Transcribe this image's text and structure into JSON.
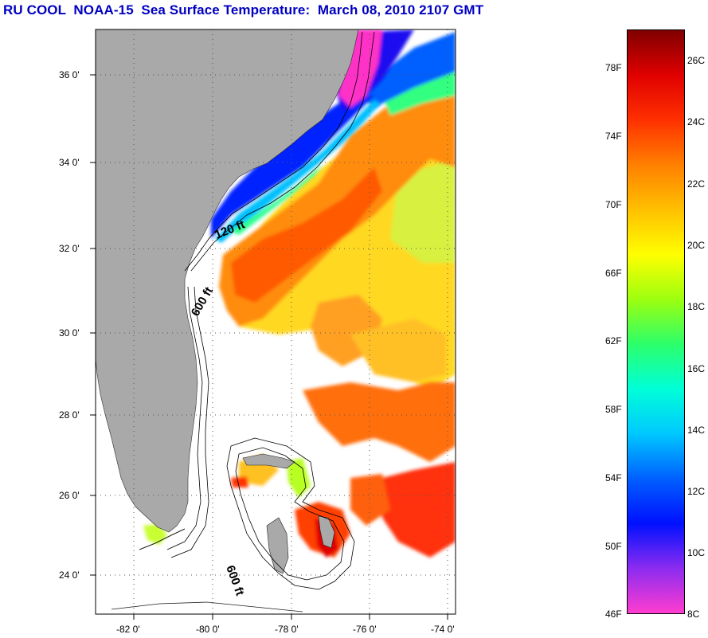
{
  "title": "RU COOL  NOAA-15  Sea Surface Temperature:  March 08, 2010 2107 GMT",
  "map": {
    "lat_ticks": [
      "36 0'",
      "34 0'",
      "32 0'",
      "30 0'",
      "28 0'",
      "26 0'",
      "24 0'"
    ],
    "lon_ticks": [
      "-82 0'",
      "-80 0'",
      "-78 0'",
      "-76 0'",
      "-74 0'"
    ],
    "contour_labels": [
      "120 ft",
      "600 ft",
      "600 ft"
    ],
    "colors": {
      "land": "#a9a9a9",
      "cloud": "#ffffff",
      "frame": "#000000"
    }
  },
  "colorbar": {
    "fahrenheit_labels": [
      "78F",
      "74F",
      "70F",
      "66F",
      "62F",
      "58F",
      "54F",
      "50F",
      "46F"
    ],
    "celsius_labels": [
      "26C",
      "24C",
      "22C",
      "20C",
      "18C",
      "16C",
      "14C",
      "12C",
      "10C",
      "8C"
    ],
    "range_celsius": [
      8,
      27.5
    ],
    "stops": [
      "#ff3ccf",
      "#8c2cf0",
      "#0010ff",
      "#0060ff",
      "#00c8ff",
      "#00ffd8",
      "#2cff6a",
      "#9cff10",
      "#ffff00",
      "#ffc000",
      "#ff8000",
      "#ff3000",
      "#e00000",
      "#800000"
    ]
  }
}
